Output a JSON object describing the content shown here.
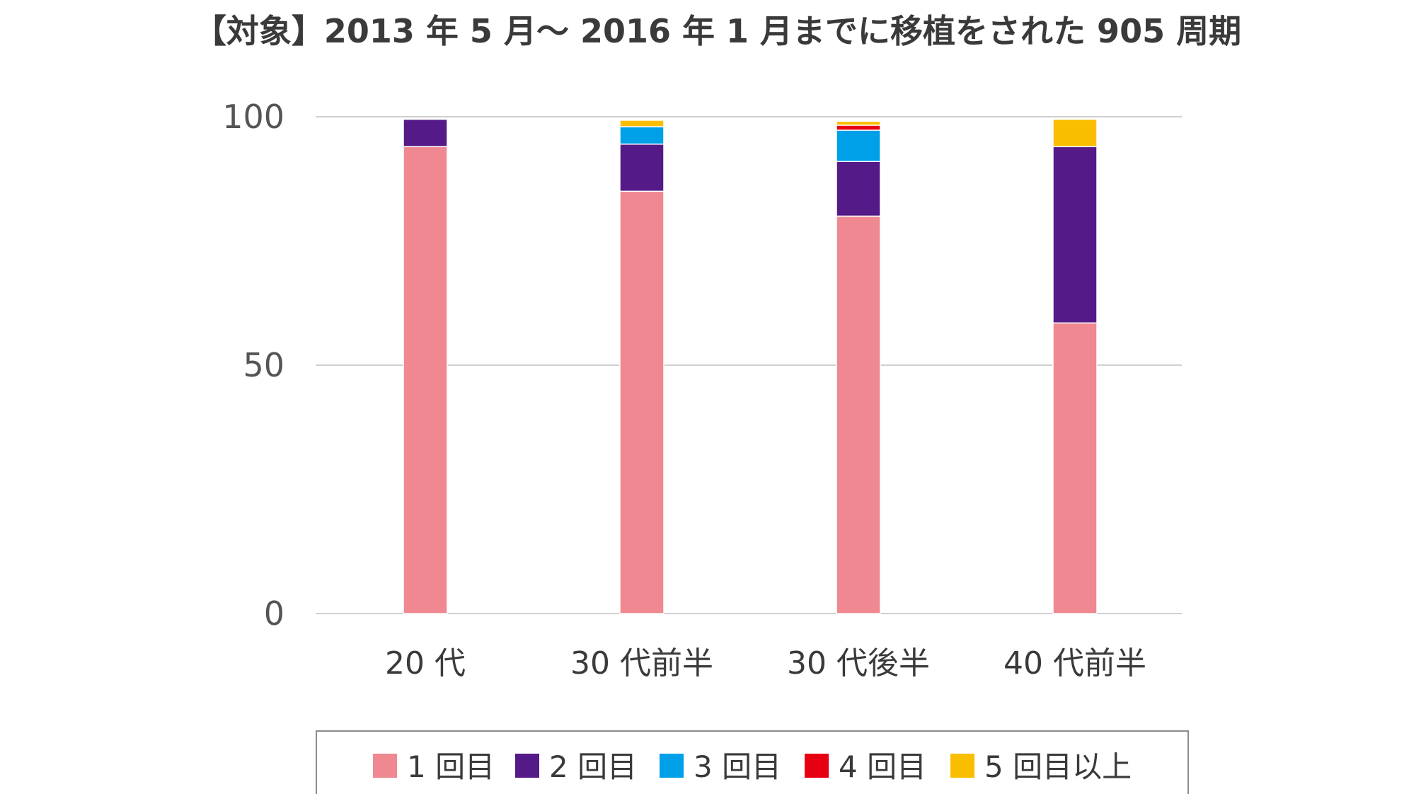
{
  "chart_data": {
    "type": "bar",
    "stacked": true,
    "title": "【対象】2013 年 5 月〜 2016 年 1 月までに移植をされた 905 周期",
    "xlabel": "",
    "ylabel": "",
    "categories": [
      "20 代",
      "30 代前半",
      "30 代後半",
      "40 代前半"
    ],
    "yticks": [
      "0",
      "50",
      "100"
    ],
    "ylim": [
      0,
      100
    ],
    "grid": true,
    "legend_position": "bottom",
    "series": [
      {
        "name": "1 回目",
        "color": "#ef8890",
        "values": [
          94,
          85,
          80,
          58.5
        ]
      },
      {
        "name": "2 回目",
        "color": "#541a87",
        "values": [
          5.5,
          9.5,
          11,
          35.5
        ]
      },
      {
        "name": "3 回目",
        "color": "#00a0e9",
        "values": [
          0,
          3.5,
          6.3,
          0
        ]
      },
      {
        "name": "4 回目",
        "color": "#e60012",
        "values": [
          0,
          0,
          1,
          0
        ]
      },
      {
        "name": "5 回目以上",
        "color": "#fabe00",
        "values": [
          0,
          1.3,
          0.8,
          5.5
        ]
      }
    ]
  }
}
